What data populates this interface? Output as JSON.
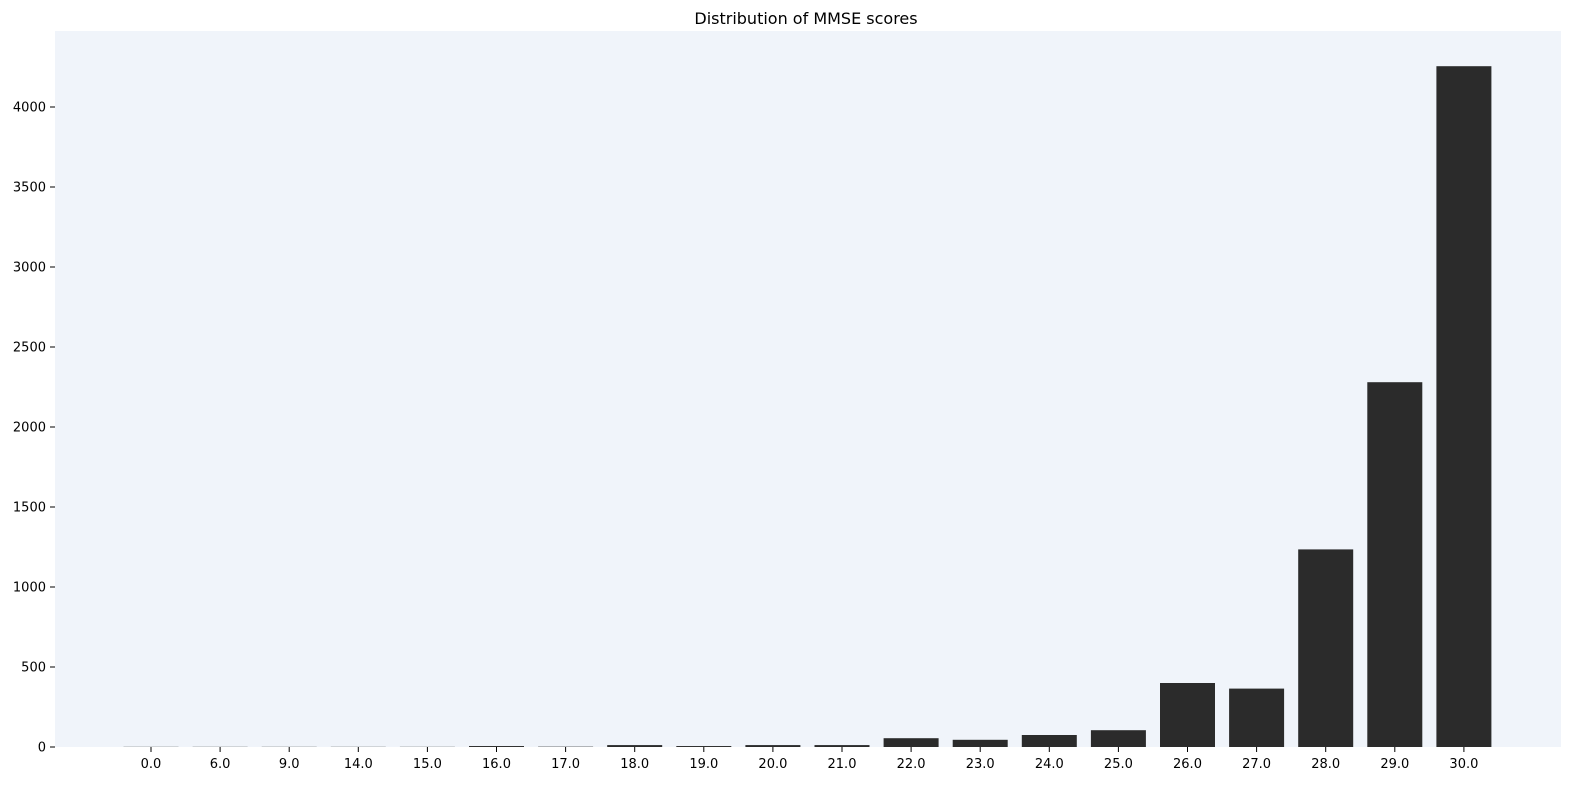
{
  "chart_data": {
    "type": "bar",
    "title": "Distribution of MMSE scores",
    "xlabel": "",
    "ylabel": "",
    "categories": [
      "0.0",
      "6.0",
      "9.0",
      "14.0",
      "15.0",
      "16.0",
      "17.0",
      "18.0",
      "19.0",
      "20.0",
      "21.0",
      "22.0",
      "23.0",
      "24.0",
      "25.0",
      "26.0",
      "27.0",
      "28.0",
      "29.0",
      "30.0"
    ],
    "values": [
      1,
      1,
      1,
      1,
      1,
      6,
      2,
      12,
      6,
      12,
      12,
      55,
      45,
      75,
      105,
      400,
      365,
      1235,
      2280,
      4255
    ],
    "ylim": [
      0,
      4475
    ],
    "yticks": [
      0,
      500,
      1000,
      1500,
      2000,
      2500,
      3000,
      3500,
      4000
    ],
    "grid": false,
    "colors": {
      "bar": "#2b2b2b",
      "plot_background": "#f0f4fa",
      "text": "#000000"
    }
  }
}
